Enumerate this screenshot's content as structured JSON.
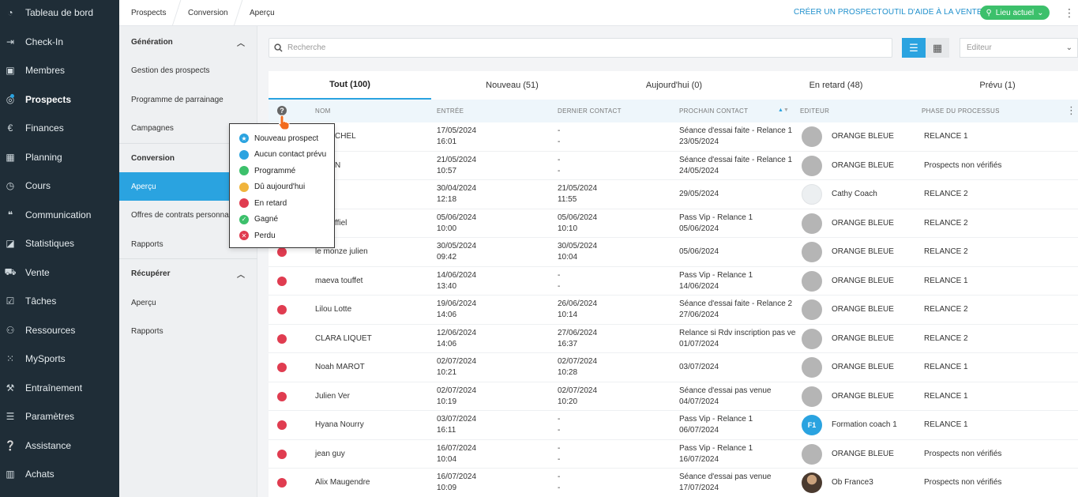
{
  "colors": {
    "accent": "#2aa3e0",
    "sidebar_bg": "#1f2d37",
    "new": "#2aa3e0",
    "no_contact": "#2aa3e0",
    "scheduled": "#3cc06b",
    "due_today": "#f0b43c",
    "late": "#e03c50",
    "won": "#3cc06b",
    "lost": "#e03c50"
  },
  "nav": {
    "items": [
      {
        "label": "Tableau de bord",
        "icon": "gauge-icon"
      },
      {
        "label": "Check-In",
        "icon": "login-icon"
      },
      {
        "label": "Membres",
        "icon": "member-card-icon"
      },
      {
        "label": "Prospects",
        "icon": "prospect-target-icon"
      },
      {
        "label": "Finances",
        "icon": "euro-icon"
      },
      {
        "label": "Planning",
        "icon": "calendar-icon"
      },
      {
        "label": "Cours",
        "icon": "stopwatch-icon"
      },
      {
        "label": "Communication",
        "icon": "chat-icon"
      },
      {
        "label": "Statistiques",
        "icon": "chart-icon"
      },
      {
        "label": "Vente",
        "icon": "cart-icon"
      },
      {
        "label": "Tâches",
        "icon": "checkbox-icon"
      },
      {
        "label": "Ressources",
        "icon": "users-icon"
      },
      {
        "label": "MySports",
        "icon": "grid-dots-icon"
      },
      {
        "label": "Entraînement",
        "icon": "dumbbell-icon"
      },
      {
        "label": "Paramètres",
        "icon": "sliders-icon"
      },
      {
        "label": "Assistance",
        "icon": "help-chat-icon"
      },
      {
        "label": "Achats",
        "icon": "barcode-icon"
      }
    ]
  },
  "subnav": {
    "generation": {
      "title": "Génération",
      "items": [
        "Gestion des prospects",
        "Programme de parrainage",
        "Campagnes"
      ]
    },
    "conversion": {
      "title": "Conversion",
      "items": [
        "Aperçu",
        "Offres de contrats personnalisées",
        "Rapports"
      ]
    },
    "recuperer": {
      "title": "Récupérer",
      "items": [
        "Aperçu",
        "Rapports"
      ]
    }
  },
  "breadcrumb": [
    "Prospects",
    "Conversion",
    "Aperçu"
  ],
  "top_actions": {
    "create": "CRÉER UN PROSPECT",
    "sales_help": "OUTIL D'AIDE À LA VENTE",
    "location": "Lieu actuel"
  },
  "search": {
    "placeholder": "Recherche"
  },
  "editor_filter": {
    "placeholder": "Editeur"
  },
  "tabs": [
    "Tout (100)",
    "Nouveau (51)",
    "Aujourd'hui (0)",
    "En retard (48)",
    "Prévu (1)"
  ],
  "columns": [
    "NOM",
    "ENTRÉE",
    "DERNIER CONTACT",
    "PROCHAIN CONTACT",
    "EDITEUR",
    "PHASE DU PROCESSUS"
  ],
  "legend": [
    {
      "label": "Nouveau prospect",
      "color": "#2aa3e0",
      "glyph": "★"
    },
    {
      "label": "Aucun contact prévu",
      "color": "#2aa3e0",
      "glyph": ""
    },
    {
      "label": "Programmé",
      "color": "#3cc06b",
      "glyph": ""
    },
    {
      "label": "Dû aujourd'hui",
      "color": "#f0b43c",
      "glyph": ""
    },
    {
      "label": "En retard",
      "color": "#e03c50",
      "glyph": ""
    },
    {
      "label": "Gagné",
      "color": "#3cc06b",
      "glyph": "✓"
    },
    {
      "label": "Perdu",
      "color": "#e03c50",
      "glyph": "✕"
    }
  ],
  "rows": [
    {
      "name": "en MICHEL",
      "entry_date": "17/05/2024",
      "entry_time": "16:01",
      "last_date": "-",
      "last_time": "-",
      "next_title": "Séance d'essai faite - Relance 1",
      "next_date": "23/05/2024",
      "editor": "ORANGE BLEUE",
      "avatar": "grey",
      "phase": "RELANCE 1"
    },
    {
      "name": "rd LON",
      "entry_date": "21/05/2024",
      "entry_time": "10:57",
      "last_date": "-",
      "last_time": "-",
      "next_title": "Séance d'essai faite - Relance 1",
      "next_date": "24/05/2024",
      "editor": "ORANGE BLEUE",
      "avatar": "grey",
      "phase": "Prospects non vérifiés"
    },
    {
      "name": "o",
      "entry_date": "30/04/2024",
      "entry_time": "12:18",
      "last_date": "21/05/2024",
      "last_time": "11:55",
      "next_title": "",
      "next_date": "29/05/2024",
      "editor": "Cathy Coach",
      "avatar": "light",
      "phase": "RELANCE 2"
    },
    {
      "name": "e Greffiel",
      "entry_date": "05/06/2024",
      "entry_time": "10:00",
      "last_date": "05/06/2024",
      "last_time": "10:10",
      "next_title": "Pass Vip - Relance 1",
      "next_date": "05/06/2024",
      "editor": "ORANGE BLEUE",
      "avatar": "grey",
      "phase": "RELANCE 2"
    },
    {
      "name": "le monze julien",
      "entry_date": "30/05/2024",
      "entry_time": "09:42",
      "last_date": "30/05/2024",
      "last_time": "10:04",
      "next_title": "",
      "next_date": "05/06/2024",
      "editor": "ORANGE BLEUE",
      "avatar": "grey",
      "phase": "RELANCE 2"
    },
    {
      "name": "maeva touffet",
      "entry_date": "14/06/2024",
      "entry_time": "13:40",
      "last_date": "-",
      "last_time": "-",
      "next_title": "Pass Vip - Relance 1",
      "next_date": "14/06/2024",
      "editor": "ORANGE BLEUE",
      "avatar": "grey",
      "phase": "RELANCE 1"
    },
    {
      "name": "Lilou Lotte",
      "entry_date": "19/06/2024",
      "entry_time": "14:06",
      "last_date": "26/06/2024",
      "last_time": "10:14",
      "next_title": "Séance d'essai faite - Relance 2",
      "next_date": "27/06/2024",
      "editor": "ORANGE BLEUE",
      "avatar": "grey",
      "phase": "RELANCE 2"
    },
    {
      "name": "CLARA LIQUET",
      "entry_date": "12/06/2024",
      "entry_time": "14:06",
      "last_date": "27/06/2024",
      "last_time": "16:37",
      "next_title": "Relance si Rdv inscription pas ven",
      "next_date": "01/07/2024",
      "editor": "ORANGE BLEUE",
      "avatar": "grey",
      "phase": "RELANCE 2"
    },
    {
      "name": "Noah MAROT",
      "entry_date": "02/07/2024",
      "entry_time": "10:21",
      "last_date": "02/07/2024",
      "last_time": "10:28",
      "next_title": "",
      "next_date": "03/07/2024",
      "editor": "ORANGE BLEUE",
      "avatar": "grey",
      "phase": "RELANCE 1"
    },
    {
      "name": "Julien Ver",
      "entry_date": "02/07/2024",
      "entry_time": "10:19",
      "last_date": "02/07/2024",
      "last_time": "10:20",
      "next_title": "Séance d'essai pas venue",
      "next_date": "04/07/2024",
      "editor": "ORANGE BLEUE",
      "avatar": "grey",
      "phase": "RELANCE 1"
    },
    {
      "name": "Hyana Nourry",
      "entry_date": "03/07/2024",
      "entry_time": "16:11",
      "last_date": "-",
      "last_time": "-",
      "next_title": "Pass Vip - Relance 1",
      "next_date": "06/07/2024",
      "editor": "Formation coach 1",
      "avatar": "initials",
      "initials": "F1",
      "phase": "RELANCE 1"
    },
    {
      "name": "jean guy",
      "entry_date": "16/07/2024",
      "entry_time": "10:04",
      "last_date": "-",
      "last_time": "-",
      "next_title": "Pass Vip - Relance 1",
      "next_date": "16/07/2024",
      "editor": "ORANGE BLEUE",
      "avatar": "grey",
      "phase": "Prospects non vérifiés"
    },
    {
      "name": "Alix Maugendre",
      "entry_date": "16/07/2024",
      "entry_time": "10:09",
      "last_date": "-",
      "last_time": "-",
      "next_title": "Séance d'essai pas venue",
      "next_date": "17/07/2024",
      "editor": "Ob France3",
      "avatar": "photo",
      "phase": "Prospects non vérifiés"
    }
  ]
}
